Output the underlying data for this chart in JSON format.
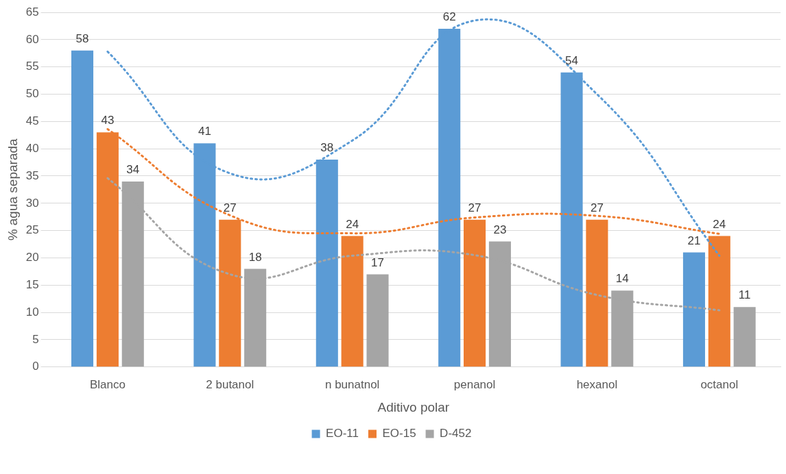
{
  "chart_data": {
    "type": "bar",
    "xlabel": "Aditivo polar",
    "ylabel": "% agua separada",
    "categories": [
      "Blanco",
      "2 butanol",
      "n bunatnol",
      "penanol",
      "hexanol",
      "octanol"
    ],
    "series": [
      {
        "name": "EO-11",
        "color": "#5b9bd5",
        "values": [
          58,
          41,
          38,
          62,
          54,
          21
        ],
        "value_labels": [
          "58",
          "41",
          "38",
          "62",
          "54",
          "21"
        ]
      },
      {
        "name": "EO-15",
        "color": "#ed7d31",
        "values": [
          43,
          27,
          24,
          27,
          27,
          24
        ],
        "value_labels": [
          "43",
          "27",
          "24",
          "27",
          "27",
          "24"
        ]
      },
      {
        "name": "D-452",
        "color": "#a5a5a5",
        "values": [
          34,
          18,
          17,
          23,
          14,
          11
        ],
        "value_labels": [
          "34",
          "18",
          "17",
          "23",
          "14",
          "11"
        ]
      },
      {
        "type": "line",
        "color": "#5b9bd5",
        "line_style": "dotted",
        "marker": "none",
        "values": [
          57.8,
          35.5,
          41.5,
          63.5,
          50,
          20.4
        ]
      },
      {
        "type": "line",
        "color": "#ed7d31",
        "line_style": "dotted",
        "marker": "none",
        "values": [
          43.6,
          27.8,
          24.5,
          27.4,
          27.7,
          24.4
        ]
      },
      {
        "type": "line",
        "color": "#a5a5a5",
        "line_style": "dotted",
        "marker": "none",
        "values": [
          34.6,
          17,
          20.4,
          20.5,
          13.2,
          10.4
        ]
      }
    ],
    "ylim": [
      0,
      65
    ],
    "yticks": [
      0,
      5,
      10,
      15,
      20,
      25,
      30,
      35,
      40,
      45,
      50,
      55,
      60,
      65
    ],
    "grid": "y",
    "legend": "bottom"
  }
}
